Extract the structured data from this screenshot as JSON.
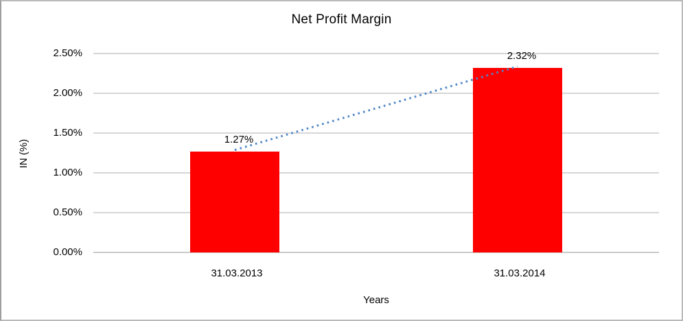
{
  "chart_data": {
    "type": "bar",
    "title": "Net Profit Margin",
    "xlabel": "Years",
    "ylabel": "IN (%)",
    "categories": [
      "31.03.2013",
      "31.03.2014"
    ],
    "values": [
      1.27,
      2.32
    ],
    "data_labels": [
      "1.27%",
      "2.32%"
    ],
    "y_ticks": [
      {
        "label": "0.00%",
        "value": 0.0
      },
      {
        "label": "0.50%",
        "value": 0.5
      },
      {
        "label": "1.00%",
        "value": 1.0
      },
      {
        "label": "1.50%",
        "value": 1.5
      },
      {
        "label": "2.00%",
        "value": 2.0
      },
      {
        "label": "2.50%",
        "value": 2.5
      }
    ],
    "ylim": [
      0,
      2.5
    ],
    "grid": true,
    "legend": "none",
    "bar_color": "#ff0000",
    "gridline_color": "#d6d6d6",
    "axis_line_color": "#c9c9c9",
    "trendline_color": "#4e86c6",
    "trendline_style": "dotted",
    "text_color": "#000000"
  }
}
